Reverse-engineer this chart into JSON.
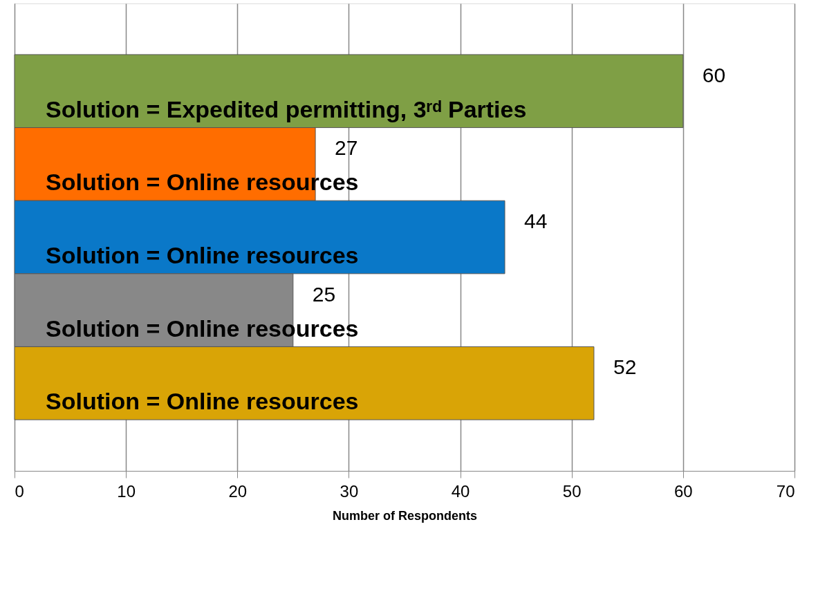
{
  "chart_data": {
    "type": "bar",
    "orientation": "horizontal",
    "categories": [
      null,
      null,
      null,
      null,
      null
    ],
    "values": [
      60,
      27,
      44,
      25,
      52
    ],
    "colors": [
      "#7f9f45",
      "#ff6d00",
      "#0a78c8",
      "#888888",
      "#d9a406"
    ],
    "annotations": [
      "Solution = Expedited permitting, 3ʳᵈ Parties",
      "Solution = Online resources",
      "Solution = Online resources",
      "Solution = Online resources",
      "Solution = Online resources"
    ],
    "xlabel": "Number of Respondents",
    "xlim": [
      0,
      70
    ],
    "xticks": [
      0,
      10,
      20,
      30,
      40,
      50,
      60,
      70
    ],
    "grid": "x",
    "data_labels": true,
    "tick_labels": "x"
  }
}
